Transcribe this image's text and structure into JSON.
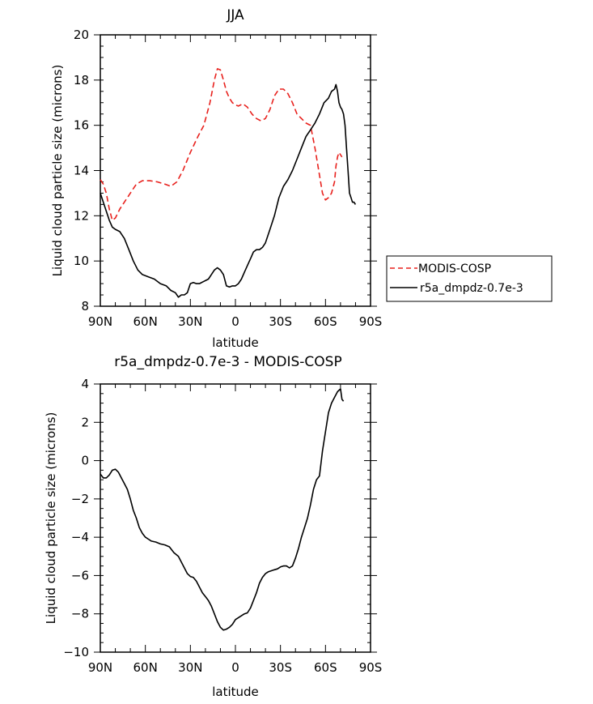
{
  "chart_data": [
    {
      "type": "line",
      "title": "JJA",
      "xlabel": "latitude",
      "ylabel": "Liquid cloud particle size (microns)",
      "xlim": [
        90,
        -90
      ],
      "ylim": [
        8,
        20
      ],
      "xticks": [
        90,
        60,
        30,
        0,
        -30,
        -60,
        -90
      ],
      "xtick_labels": [
        "90N",
        "60N",
        "30N",
        "0",
        "30S",
        "60S",
        "90S"
      ],
      "yticks": [
        8,
        10,
        12,
        14,
        16,
        18,
        20
      ],
      "ytick_labels": [
        "8",
        "10",
        "12",
        "14",
        "16",
        "18",
        "20"
      ],
      "legend_position": "right",
      "series": [
        {
          "name": "MODIS-COSP",
          "color": "#e8211d",
          "dash": "dashed",
          "x": [
            90,
            88,
            86,
            84,
            82,
            80,
            77,
            74,
            70,
            66,
            62,
            57,
            52,
            47,
            43,
            39,
            35,
            30,
            25,
            21,
            17,
            14,
            12,
            10,
            8,
            6,
            4,
            2,
            0,
            -2,
            -5,
            -8,
            -11,
            -14,
            -17,
            -20,
            -23,
            -26,
            -29,
            -32,
            -35,
            -38,
            -41,
            -44,
            -47,
            -50,
            -53,
            -56,
            -58,
            -60,
            -62,
            -64,
            -66,
            -67,
            -68,
            -69,
            -70,
            -71
          ],
          "y": [
            13.6,
            13.4,
            13.0,
            12.3,
            11.8,
            11.9,
            12.3,
            12.6,
            13.0,
            13.4,
            13.55,
            13.55,
            13.5,
            13.4,
            13.3,
            13.5,
            14.0,
            14.8,
            15.5,
            16.0,
            17.0,
            18.0,
            18.5,
            18.45,
            18.0,
            17.5,
            17.2,
            17.0,
            16.9,
            16.85,
            16.95,
            16.8,
            16.5,
            16.3,
            16.2,
            16.3,
            16.7,
            17.3,
            17.6,
            17.6,
            17.4,
            17.0,
            16.5,
            16.3,
            16.1,
            16.0,
            15.0,
            13.8,
            13.0,
            12.7,
            12.8,
            13.0,
            13.5,
            14.2,
            14.6,
            14.8,
            14.7,
            14.6
          ]
        },
        {
          "name": "r5a_dmpdz-0.7e-3",
          "color": "#000000",
          "dash": "solid",
          "x": [
            90,
            88,
            86,
            84,
            82,
            80,
            77,
            74,
            71,
            68,
            65,
            62,
            58,
            54,
            50,
            46,
            43,
            40,
            38,
            36,
            34,
            32,
            30,
            28,
            26,
            24,
            21,
            18,
            16,
            14,
            12,
            10,
            8,
            6,
            4,
            2,
            0,
            -2,
            -4,
            -6,
            -8,
            -10,
            -12,
            -14,
            -16,
            -18,
            -20,
            -23,
            -26,
            -29,
            -32,
            -35,
            -38,
            -41,
            -44,
            -47,
            -50,
            -53,
            -56,
            -59,
            -62,
            -64,
            -66,
            -67,
            -68,
            -69,
            -70,
            -71,
            -72,
            -73,
            -74,
            -75,
            -76,
            -77,
            -78,
            -79,
            -80
          ],
          "y": [
            13.0,
            12.6,
            12.2,
            11.8,
            11.5,
            11.4,
            11.3,
            11.0,
            10.5,
            10.0,
            9.6,
            9.4,
            9.3,
            9.2,
            9.0,
            8.9,
            8.7,
            8.6,
            8.4,
            8.5,
            8.5,
            8.6,
            9.0,
            9.05,
            9.0,
            9.0,
            9.1,
            9.2,
            9.4,
            9.6,
            9.7,
            9.6,
            9.4,
            8.9,
            8.85,
            8.9,
            8.9,
            9.0,
            9.2,
            9.5,
            9.8,
            10.1,
            10.4,
            10.5,
            10.5,
            10.6,
            10.8,
            11.4,
            12.0,
            12.8,
            13.3,
            13.6,
            14.0,
            14.5,
            15.0,
            15.5,
            15.8,
            16.1,
            16.5,
            17.0,
            17.2,
            17.5,
            17.6,
            17.8,
            17.5,
            17.0,
            16.8,
            16.7,
            16.5,
            16.0,
            15.0,
            14.0,
            13.0,
            12.8,
            12.6,
            12.6,
            12.5
          ]
        }
      ]
    },
    {
      "type": "line",
      "title": "r5a_dmpdz-0.7e-3 - MODIS-COSP",
      "xlabel": "latitude",
      "ylabel": "Liquid cloud particle size (microns)",
      "xlim": [
        90,
        -90
      ],
      "ylim": [
        -10,
        4
      ],
      "xticks": [
        90,
        60,
        30,
        0,
        -30,
        -60,
        -90
      ],
      "xtick_labels": [
        "90N",
        "60N",
        "30N",
        "0",
        "30S",
        "60S",
        "90S"
      ],
      "yticks": [
        -10,
        -8,
        -6,
        -4,
        -2,
        0,
        2,
        4
      ],
      "ytick_labels": [
        "−10",
        "−8",
        "−6",
        "−4",
        "−2",
        "0",
        "2",
        "4"
      ],
      "series": [
        {
          "name": "r5a_dmpdz-0.7e-3 - MODIS-COSP",
          "color": "#000000",
          "dash": "solid",
          "x": [
            90,
            88,
            86,
            84,
            82,
            80,
            78,
            76,
            74,
            72,
            70,
            68,
            66,
            64,
            62,
            60,
            58,
            56,
            53,
            50,
            47,
            44,
            41,
            38,
            36,
            34,
            32,
            30,
            28,
            26,
            24,
            22,
            20,
            18,
            16,
            14,
            12,
            10,
            8,
            6,
            4,
            2,
            0,
            -2,
            -4,
            -6,
            -8,
            -10,
            -12,
            -14,
            -16,
            -18,
            -20,
            -22,
            -24,
            -26,
            -28,
            -30,
            -32,
            -34,
            -36,
            -38,
            -40,
            -42,
            -44,
            -46,
            -48,
            -50,
            -52,
            -54,
            -56,
            -58,
            -60,
            -62,
            -64,
            -66,
            -68,
            -70,
            -71,
            -72
          ],
          "y": [
            -0.7,
            -0.9,
            -0.9,
            -0.75,
            -0.5,
            -0.45,
            -0.6,
            -0.9,
            -1.2,
            -1.5,
            -2.0,
            -2.6,
            -3.0,
            -3.5,
            -3.8,
            -4.0,
            -4.1,
            -4.2,
            -4.25,
            -4.35,
            -4.4,
            -4.5,
            -4.8,
            -5.0,
            -5.3,
            -5.6,
            -5.9,
            -6.05,
            -6.1,
            -6.3,
            -6.6,
            -6.9,
            -7.1,
            -7.3,
            -7.6,
            -8.0,
            -8.4,
            -8.7,
            -8.85,
            -8.8,
            -8.7,
            -8.55,
            -8.3,
            -8.2,
            -8.1,
            -8.0,
            -7.95,
            -7.7,
            -7.3,
            -6.9,
            -6.4,
            -6.1,
            -5.9,
            -5.8,
            -5.75,
            -5.7,
            -5.65,
            -5.55,
            -5.5,
            -5.5,
            -5.6,
            -5.5,
            -5.1,
            -4.6,
            -4.0,
            -3.5,
            -3.0,
            -2.3,
            -1.5,
            -1.0,
            -0.8,
            0.5,
            1.5,
            2.5,
            3.0,
            3.3,
            3.6,
            3.75,
            3.2,
            3.1
          ]
        }
      ]
    }
  ]
}
